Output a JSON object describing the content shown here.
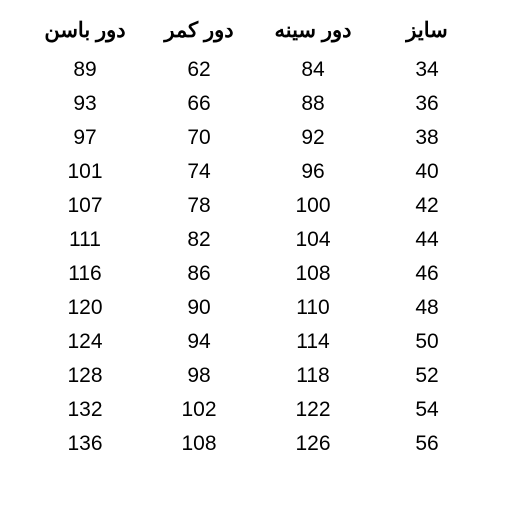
{
  "table": {
    "type": "table",
    "columns": [
      "سایز",
      "دور سینه",
      "دور کمر",
      "دور باسن"
    ],
    "rows": [
      [
        34,
        84,
        62,
        89
      ],
      [
        36,
        88,
        66,
        93
      ],
      [
        38,
        92,
        70,
        97
      ],
      [
        40,
        96,
        74,
        101
      ],
      [
        42,
        100,
        78,
        107
      ],
      [
        44,
        104,
        82,
        111
      ],
      [
        46,
        108,
        86,
        116
      ],
      [
        48,
        110,
        90,
        120
      ],
      [
        50,
        114,
        94,
        124
      ],
      [
        52,
        118,
        98,
        128
      ],
      [
        54,
        122,
        102,
        132
      ],
      [
        56,
        126,
        108,
        136
      ]
    ],
    "header_fontsize": 21,
    "cell_fontsize": 21,
    "text_color": "#000000",
    "background_color": "#ffffff",
    "column_alignment": [
      "center",
      "center",
      "center",
      "center"
    ]
  }
}
